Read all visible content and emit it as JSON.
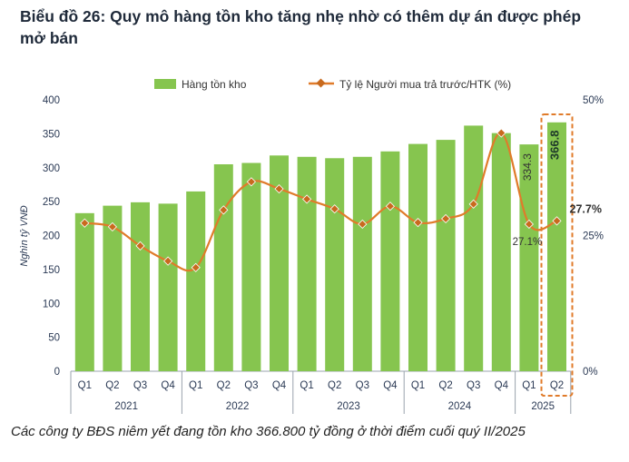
{
  "title": "Biểu đồ 26: Quy mô hàng tồn kho tăng nhẹ nhờ có thêm dự án được phép mở bán",
  "caption": "Các công ty BĐS niêm yết đang tồn kho 366.800 tỷ đồng ở thời điểm cuối quý II/2025",
  "colors": {
    "bar": "#86c54f",
    "line": "#e07b2a",
    "marker": "#c86a1e",
    "highlight_box": "#e07b2a",
    "axis_text": "#2b3a55"
  },
  "chart_data": {
    "type": "bar+line",
    "categories": [
      "Q1",
      "Q2",
      "Q3",
      "Q4",
      "Q1",
      "Q2",
      "Q3",
      "Q4",
      "Q1",
      "Q2",
      "Q3",
      "Q4",
      "Q1",
      "Q2",
      "Q3",
      "Q4",
      "Q1",
      "Q2"
    ],
    "years": [
      {
        "label": "2021",
        "count": 4
      },
      {
        "label": "2022",
        "count": 4
      },
      {
        "label": "2023",
        "count": 4
      },
      {
        "label": "2024",
        "count": 4
      },
      {
        "label": "2025",
        "count": 2
      }
    ],
    "series": [
      {
        "name": "Hàng tồn kho",
        "type": "bar",
        "axis": "left",
        "values": [
          233,
          244,
          249,
          247,
          265,
          305,
          307,
          318,
          316,
          314,
          316,
          324,
          335,
          341,
          362,
          351,
          334.3,
          366.8
        ]
      },
      {
        "name": "Tỷ lệ Người mua trả trước/HTK (%)",
        "type": "line",
        "axis": "right",
        "values": [
          27.3,
          26.6,
          23.1,
          20.3,
          19.1,
          29.7,
          34.9,
          33.6,
          31.7,
          29.9,
          27.1,
          30.4,
          27.4,
          28.1,
          30.8,
          43.9,
          27.1,
          27.7
        ]
      }
    ],
    "ylabel": "Nghìn tỷ VNĐ",
    "ylim": [
      0,
      400
    ],
    "yticks": [
      0,
      50,
      100,
      150,
      200,
      250,
      300,
      350,
      400
    ],
    "y2lim": [
      0,
      50
    ],
    "y2ticks": [
      {
        "v": 0,
        "label": "0%"
      },
      {
        "v": 25,
        "label": "25%"
      },
      {
        "v": 50,
        "label": "50%"
      }
    ],
    "data_labels": [
      {
        "series": 0,
        "index": 16,
        "text": "334.3"
      },
      {
        "series": 0,
        "index": 17,
        "text": "366.8"
      },
      {
        "series": 1,
        "index": 16,
        "text": "27.1%"
      },
      {
        "series": 1,
        "index": 17,
        "text": "27.7%"
      }
    ],
    "legend_position": "top",
    "grid": false
  }
}
